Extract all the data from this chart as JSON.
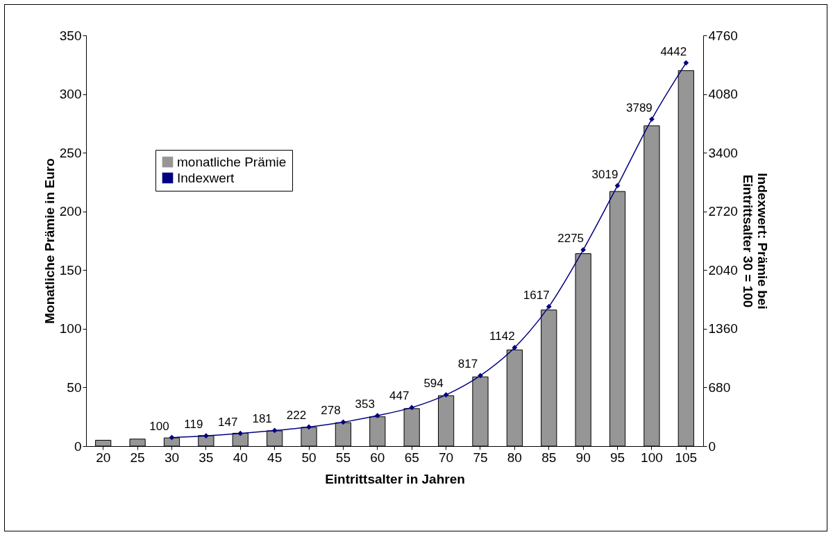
{
  "chart_data": {
    "type": "bar",
    "xlabel": "Eintrittsalter in Jahren",
    "ylabel": "Monatliche Prämie in Euro",
    "y2label": "Indexwert: Prämie bei Eintrittsalter 30 = 100",
    "categories": [
      "20",
      "25",
      "30",
      "35",
      "40",
      "45",
      "50",
      "55",
      "60",
      "65",
      "70",
      "75",
      "80",
      "85",
      "90",
      "95",
      "100",
      "105"
    ],
    "series": [
      {
        "name": "monatliche Prämie",
        "color": "#969696",
        "values": [
          5,
          6,
          7,
          9,
          11,
          13,
          16,
          20,
          25,
          32,
          43,
          59,
          82,
          116,
          164,
          217,
          273,
          320
        ]
      },
      {
        "name": "Indexwert",
        "type": "line",
        "axis": "y2",
        "color": "#000080",
        "values": [
          null,
          null,
          100,
          119,
          147,
          181,
          222,
          278,
          353,
          447,
          594,
          817,
          1142,
          1617,
          2275,
          3019,
          3789,
          4442
        ],
        "value_labels": [
          null,
          null,
          "100",
          "119",
          "147",
          "181",
          "222",
          "278",
          "353",
          "447",
          "594",
          "817",
          "1142",
          "1617",
          "2275",
          "3019",
          "3789",
          "4442"
        ]
      }
    ],
    "ylim": [
      0,
      350
    ],
    "yticks": [
      0,
      50,
      100,
      150,
      200,
      250,
      300,
      350
    ],
    "y2lim": [
      0,
      4760
    ],
    "y2ticks": [
      0,
      680,
      1360,
      2040,
      2720,
      3400,
      4080,
      4760
    ],
    "legend": "top left",
    "grid": false,
    "marker": "diamond",
    "line_style": "solid"
  }
}
